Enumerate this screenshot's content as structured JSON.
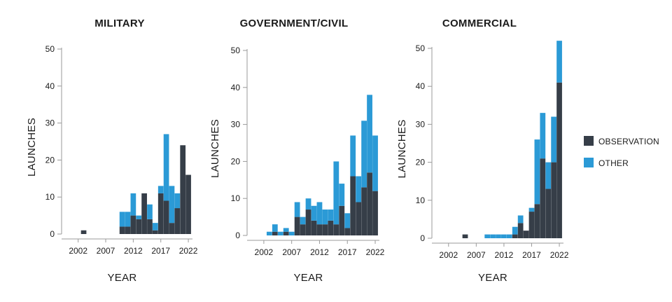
{
  "colors": {
    "observation": "#363e48",
    "other": "#2b9ad6"
  },
  "legend": [
    {
      "key": "observation",
      "label": "OBSERVATION"
    },
    {
      "key": "other",
      "label": "OTHER"
    }
  ],
  "chart_data": [
    {
      "type": "bar",
      "stacked": true,
      "title": "MILITARY",
      "xlabel": "YEAR",
      "ylabel": "LAUNCHES",
      "ylim": [
        0,
        50
      ],
      "yticks": [
        0,
        10,
        20,
        30,
        40,
        50
      ],
      "xticks": [
        2002,
        2007,
        2012,
        2017,
        2022
      ],
      "x": [
        2000,
        2001,
        2002,
        2003,
        2004,
        2005,
        2006,
        2007,
        2008,
        2009,
        2010,
        2011,
        2012,
        2013,
        2014,
        2015,
        2016,
        2017,
        2018,
        2019,
        2020,
        2021,
        2022
      ],
      "series": [
        {
          "name": "OBSERVATION",
          "values": [
            0,
            0,
            0,
            1,
            0,
            0,
            0,
            0,
            0,
            0,
            2,
            2,
            5,
            4,
            11,
            4,
            1,
            11,
            9,
            3,
            7,
            24,
            16
          ]
        },
        {
          "name": "OTHER",
          "values": [
            0,
            0,
            0,
            0,
            0,
            0,
            0,
            0,
            0,
            0,
            4,
            4,
            6,
            1,
            0,
            4,
            2,
            2,
            18,
            10,
            4,
            0,
            0
          ]
        }
      ]
    },
    {
      "type": "bar",
      "stacked": true,
      "title": "GOVERNMENT/CIVIL",
      "xlabel": "YEAR",
      "ylabel": "LAUNCHES",
      "ylim": [
        0,
        50
      ],
      "yticks": [
        0,
        10,
        20,
        30,
        40,
        50
      ],
      "xticks": [
        2002,
        2007,
        2012,
        2017,
        2022
      ],
      "x": [
        2000,
        2001,
        2002,
        2003,
        2004,
        2005,
        2006,
        2007,
        2008,
        2009,
        2010,
        2011,
        2012,
        2013,
        2014,
        2015,
        2016,
        2017,
        2018,
        2019,
        2020,
        2021,
        2022
      ],
      "series": [
        {
          "name": "OBSERVATION",
          "values": [
            0,
            0,
            0,
            0,
            1,
            0,
            1,
            0,
            5,
            3,
            7,
            4,
            3,
            3,
            4,
            3,
            8,
            2,
            16,
            9,
            13,
            17,
            12
          ]
        },
        {
          "name": "OTHER",
          "values": [
            0,
            0,
            0,
            1,
            2,
            1,
            1,
            1,
            4,
            2,
            3,
            4,
            6,
            4,
            3,
            17,
            6,
            4,
            11,
            7,
            18,
            21,
            15
          ]
        }
      ]
    },
    {
      "type": "bar",
      "stacked": true,
      "title": "COMMERCIAL",
      "xlabel": "YEAR",
      "ylabel": "LAUNCHES",
      "ylim": [
        0,
        50
      ],
      "yticks": [
        0,
        10,
        20,
        30,
        40,
        50
      ],
      "xticks": [
        2002,
        2007,
        2012,
        2017,
        2022
      ],
      "x": [
        2000,
        2001,
        2002,
        2003,
        2004,
        2005,
        2006,
        2007,
        2008,
        2009,
        2010,
        2011,
        2012,
        2013,
        2014,
        2015,
        2016,
        2017,
        2018,
        2019,
        2020,
        2021,
        2022
      ],
      "series": [
        {
          "name": "OBSERVATION",
          "values": [
            0,
            0,
            0,
            0,
            0,
            1,
            0,
            0,
            0,
            0,
            0,
            0,
            0,
            0,
            1,
            4,
            2,
            7,
            9,
            21,
            13,
            20,
            41
          ]
        },
        {
          "name": "OTHER",
          "values": [
            0,
            0,
            0,
            0,
            0,
            0,
            0,
            0,
            0,
            1,
            1,
            1,
            1,
            1,
            2,
            2,
            0,
            1,
            17,
            12,
            7,
            12,
            11
          ]
        }
      ]
    }
  ]
}
